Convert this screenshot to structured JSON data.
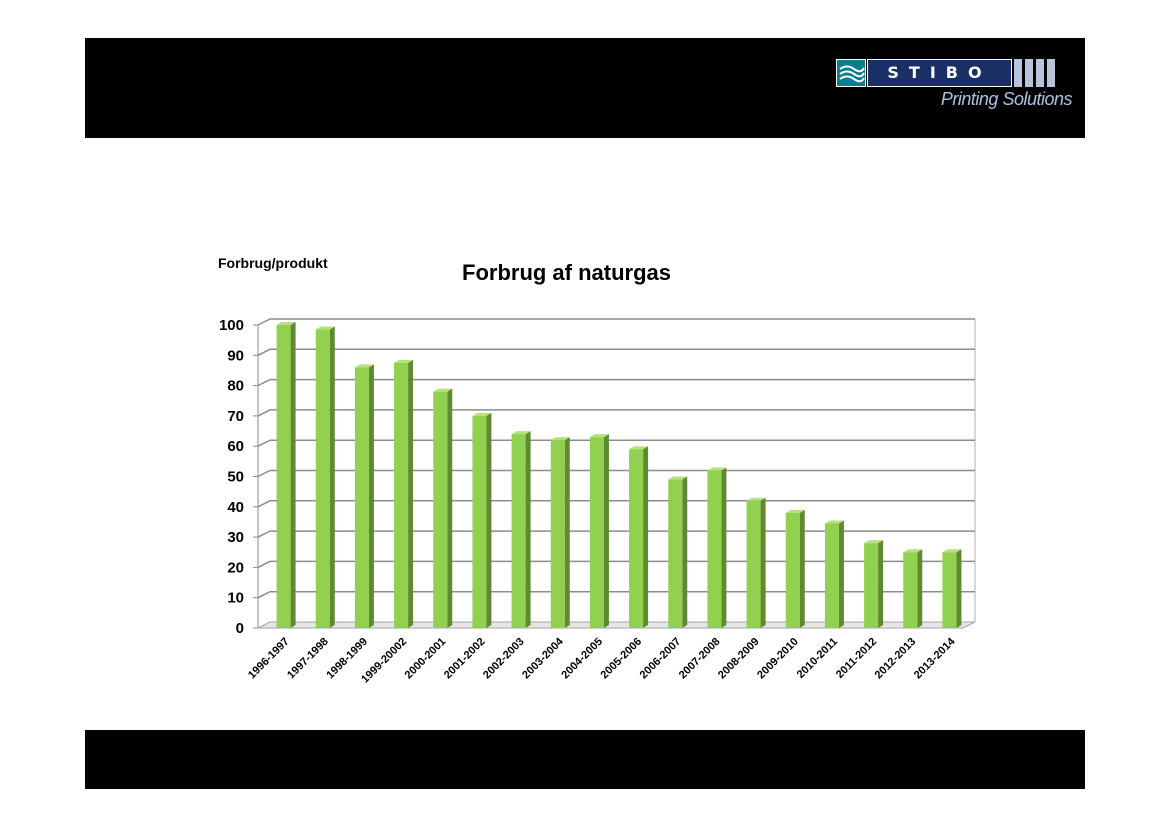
{
  "logo": {
    "brand": "STIBO",
    "subtitle": "Printing Solutions"
  },
  "chart_data": {
    "type": "bar",
    "title": "Forbrug af naturgas",
    "ylabel": "Forbrug/produkt",
    "xlabel": "",
    "ylim": [
      0,
      100
    ],
    "yticks": [
      0,
      10,
      20,
      30,
      40,
      50,
      60,
      70,
      80,
      90,
      100
    ],
    "grid": true,
    "categories": [
      "1996-1997",
      "1997-1998",
      "1998-1999",
      "1999-20002",
      "2000-2001",
      "2001-2002",
      "2002-2003",
      "2003-2004",
      "2004-2005",
      "2005-2006",
      "2006-2007",
      "2007-2008",
      "2008-2009",
      "2009-2010",
      "2010-2011",
      "2011-2012",
      "2012-2013",
      "2013-2014"
    ],
    "values": [
      100,
      98.5,
      86,
      87.5,
      78,
      70,
      64,
      62,
      63,
      59,
      49,
      52,
      42,
      38,
      34.5,
      28,
      25,
      25
    ],
    "colors": {
      "bar_front": "#92d050",
      "bar_side": "#5f8a2f",
      "bar_top": "#b5e27e",
      "grid": "#8c8c8c"
    }
  }
}
